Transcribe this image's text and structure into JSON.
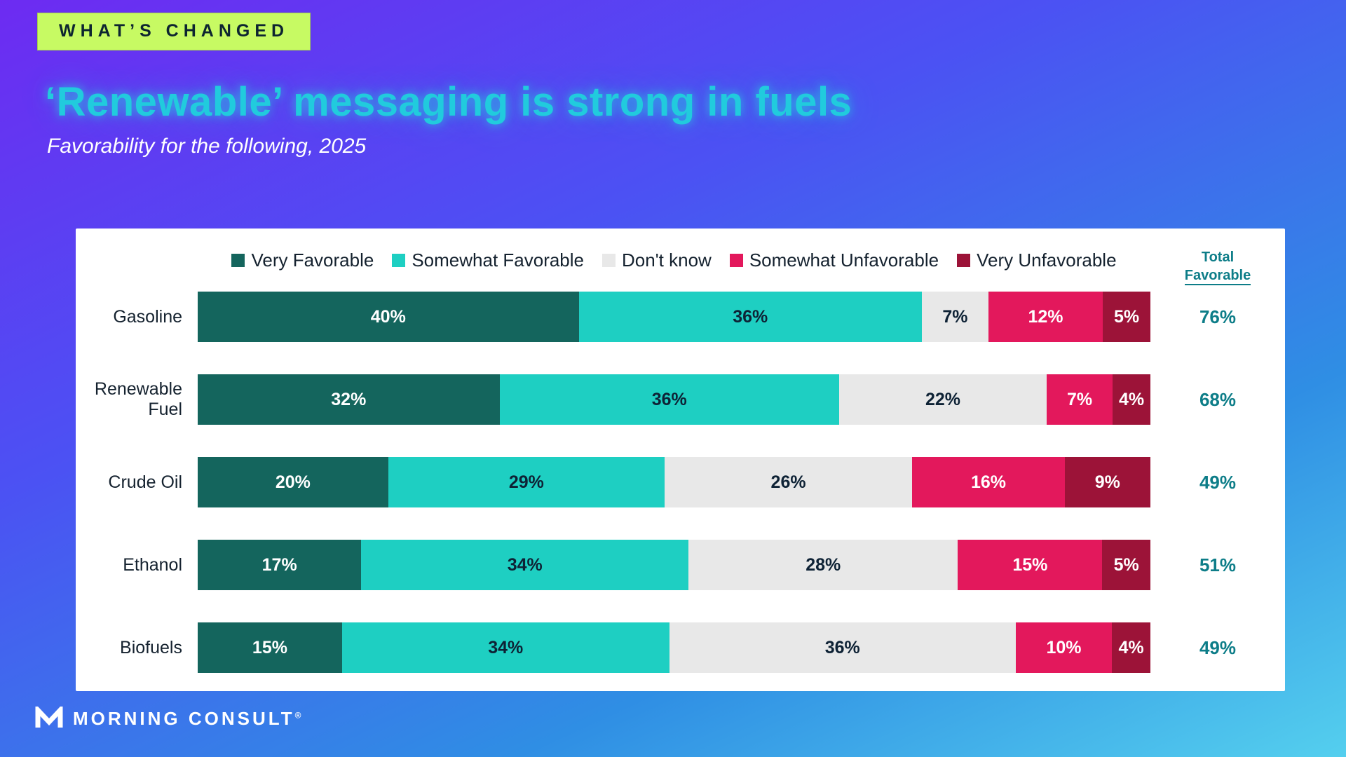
{
  "banner": {
    "label": "WHAT’S CHANGED"
  },
  "header": {
    "title": "‘Renewable’ messaging is strong in fuels",
    "subtitle": "Favorability for the following, 2025"
  },
  "logo": {
    "text": "MORNING CONSULT",
    "registered": "®"
  },
  "colors": {
    "accent_teal_text": "#0d7d88",
    "title_cyan": "#21cbdd",
    "banner_green": "#c7fa63"
  },
  "chart_data": {
    "type": "bar",
    "variant": "horizontal-stacked-100",
    "legend": [
      "Very Favorable",
      "Somewhat Favorable",
      "Don't know",
      "Somewhat Unfavorable",
      "Very Unfavorable"
    ],
    "colors": [
      "#14655d",
      "#1ecfc2",
      "#e8e8e8",
      "#e3185c",
      "#9c1338"
    ],
    "value_label_colors": [
      "#ffffff",
      "#0e2235",
      "#0e2235",
      "#ffffff",
      "#ffffff"
    ],
    "categories": [
      "Gasoline",
      "Renewable Fuel",
      "Crude Oil",
      "Ethanol",
      "Biofuels"
    ],
    "series": [
      {
        "name": "Very Favorable",
        "values": [
          40,
          32,
          20,
          17,
          15
        ]
      },
      {
        "name": "Somewhat Favorable",
        "values": [
          36,
          36,
          29,
          34,
          34
        ]
      },
      {
        "name": "Don't know",
        "values": [
          7,
          22,
          26,
          28,
          36
        ]
      },
      {
        "name": "Somewhat Unfavorable",
        "values": [
          12,
          7,
          16,
          15,
          10
        ]
      },
      {
        "name": "Very Unfavorable",
        "values": [
          5,
          4,
          9,
          5,
          4
        ]
      }
    ],
    "totals": [
      76,
      68,
      49,
      51,
      49
    ],
    "total_header": {
      "line1": "Total",
      "line2": "Favorable"
    },
    "value_suffix": "%",
    "xlim": [
      0,
      100
    ],
    "grid": false,
    "legend_position": "top"
  }
}
